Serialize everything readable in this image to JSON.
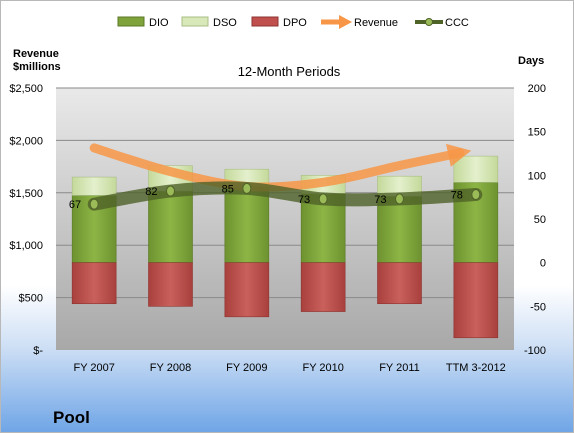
{
  "chart_data": {
    "type": "bar",
    "title": "12-Month Periods",
    "company": "Pool",
    "left_axis_label": [
      "Revenue",
      "$millions"
    ],
    "right_axis_label": "Days",
    "categories": [
      "FY 2007",
      "FY 2008",
      "FY 2009",
      "FY 2010",
      "FY 2011",
      "TTM 3-2012"
    ],
    "left_axis": {
      "ylim": [
        0,
        2500
      ],
      "ticks": [
        0,
        500,
        1000,
        1500,
        2000,
        2500
      ],
      "tick_labels": [
        "$-",
        "$500",
        "$1,000",
        "$1,500",
        "$2,000",
        "$2,500"
      ]
    },
    "right_axis": {
      "ylim": [
        -100,
        200
      ],
      "ticks": [
        -100,
        -50,
        0,
        50,
        100,
        150,
        200
      ],
      "tick_labels": [
        "-100",
        "-50",
        "0",
        "50",
        "100",
        "150",
        "200"
      ]
    },
    "series": [
      {
        "name": "DIO",
        "axis": "right",
        "kind": "stacked-bar",
        "color": "#7ea33a",
        "values": [
          77,
          82,
          87,
          79,
          76,
          92
        ]
      },
      {
        "name": "DSO",
        "axis": "right",
        "kind": "stacked-bar",
        "color": "#d8e8b8",
        "values": [
          21,
          29,
          20,
          21,
          23,
          30
        ]
      },
      {
        "name": "DPO",
        "axis": "right",
        "kind": "stacked-bar",
        "color": "#c0504d",
        "values": [
          -47,
          -50,
          -62,
          -56,
          -47,
          -86
        ]
      },
      {
        "name": "Revenue",
        "axis": "left",
        "kind": "smooth-line",
        "color": "#f79646",
        "values": [
          1928,
          1702,
          1560,
          1600,
          1760,
          1880
        ]
      },
      {
        "name": "CCC",
        "axis": "right",
        "kind": "smooth-line-markers",
        "color": "#4f6228",
        "values": [
          67,
          82,
          85,
          73,
          73,
          78
        ]
      }
    ],
    "ccc_labels": [
      "67",
      "82",
      "85",
      "73",
      "73",
      "78"
    ],
    "grid": true,
    "legend": "top"
  }
}
